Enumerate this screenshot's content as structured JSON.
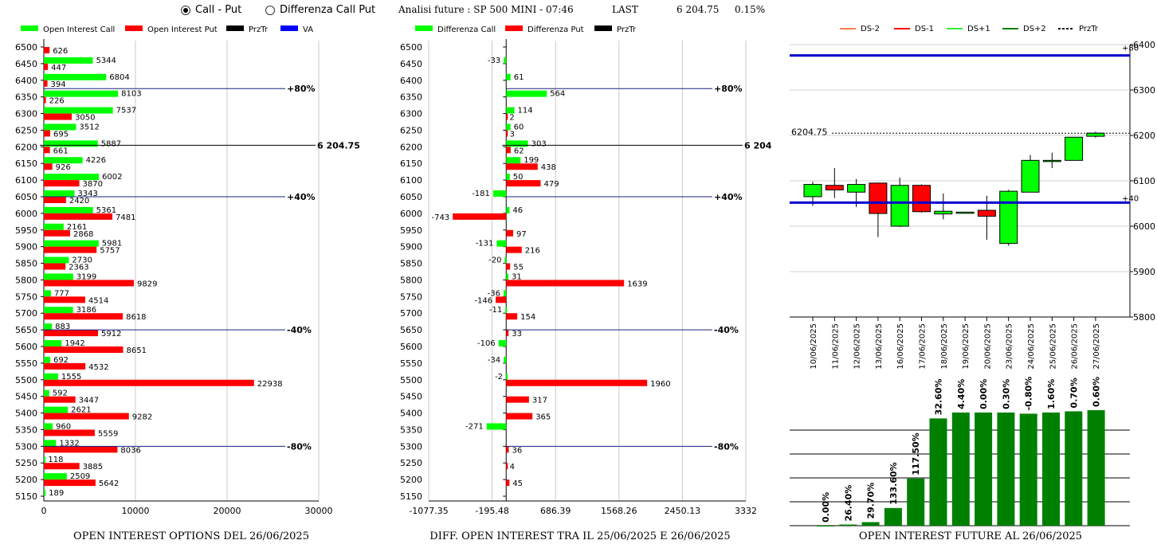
{
  "header": {
    "radio_call_put": "Call - Put",
    "radio_diff": "Differenza Call Put",
    "title": "Analisi future : SP 500 MINI - 07:46",
    "last_label": "LAST",
    "last_value": "6 204.75",
    "change": "0.15%"
  },
  "colors": {
    "call": "#00ff00",
    "put": "#ff0000",
    "va": "#0000ff",
    "bar_future": "#008000"
  },
  "chart_data": [
    {
      "type": "bar",
      "orientation": "horizontal",
      "title": "OPEN INTEREST OPTIONS DEL 26/06/2025",
      "legend": [
        "Open Interest Call",
        "Open Interest Put",
        "PrzTr",
        "VA"
      ],
      "strikes": [
        "6500",
        "6450",
        "6400",
        "6350",
        "6300",
        "6250",
        "6200",
        "6150",
        "6100",
        "6050",
        "6000",
        "5950",
        "5900",
        "5850",
        "5800",
        "5750",
        "5700",
        "5650",
        "5600",
        "5550",
        "5500",
        "5450",
        "5400",
        "5350",
        "5300",
        "5250",
        "5200",
        "5150"
      ],
      "call": [
        null,
        5344,
        6804,
        8103,
        7537,
        3512,
        5887,
        4226,
        6002,
        3343,
        5361,
        2161,
        5981,
        2730,
        3199,
        777,
        3186,
        883,
        1942,
        692,
        1555,
        592,
        2621,
        960,
        1332,
        118,
        2509,
        189
      ],
      "put": [
        626,
        447,
        394,
        226,
        3050,
        695,
        661,
        926,
        3870,
        2420,
        7481,
        2868,
        5757,
        2363,
        9829,
        4514,
        8618,
        5912,
        8651,
        4532,
        22938,
        3447,
        9282,
        5559,
        8036,
        3885,
        5642,
        null
      ],
      "xticks": [
        "0",
        "10000",
        "20000",
        "30000"
      ],
      "xlim": [
        0,
        30000
      ],
      "lines": [
        {
          "strike": 6375,
          "label": "+80%"
        },
        {
          "strike": 6204.75,
          "label": "6 204.75"
        },
        {
          "strike": 6050,
          "label": "+40%"
        },
        {
          "strike": 5650,
          "label": "-40%"
        },
        {
          "strike": 5300,
          "label": "-80%"
        }
      ]
    },
    {
      "type": "bar",
      "orientation": "horizontal",
      "title": "DIFF. OPEN INTEREST TRA IL 25/06/2025 E 26/06/2025",
      "legend": [
        "Differenza Call",
        "Differenza Put",
        "PrzTr"
      ],
      "call": [
        null,
        -33,
        61,
        564,
        114,
        60,
        303,
        199,
        50,
        -181,
        46,
        null,
        -131,
        -20,
        31,
        -36,
        -11,
        null,
        -106,
        -34,
        -2,
        null,
        null,
        -271,
        null,
        null,
        null,
        null
      ],
      "put": [
        null,
        null,
        null,
        null,
        2,
        3,
        62,
        438,
        479,
        null,
        -743,
        97,
        216,
        55,
        1639,
        -146,
        154,
        33,
        null,
        null,
        1960,
        317,
        365,
        null,
        36,
        4,
        45,
        null
      ],
      "xticks": [
        "-1077.35",
        "-195.48",
        "686.39",
        "1568.26",
        "2450.13",
        "3332"
      ],
      "xlim": [
        -1077.35,
        3332
      ]
    },
    {
      "type": "candlestick",
      "legend": [
        "DS-2",
        "DS-1",
        "DS+1",
        "DS+2",
        "PrzTr"
      ],
      "dates": [
        "10/06/2025",
        "11/06/2025",
        "12/06/2025",
        "13/06/2025",
        "16/06/2025",
        "17/06/2025",
        "18/06/2025",
        "19/06/2025",
        "20/06/2025",
        "23/06/2025",
        "24/06/2025",
        "25/06/2025",
        "26/06/2025",
        "27/06/2025"
      ],
      "ohlc": [
        [
          6065,
          6098,
          6045,
          6092
        ],
        [
          6090,
          6128,
          6062,
          6080
        ],
        [
          6075,
          6104,
          6042,
          6092
        ],
        [
          6095,
          6096,
          5976,
          6028
        ],
        [
          6000,
          6107,
          5998,
          6090
        ],
        [
          6090,
          6092,
          6030,
          6032
        ],
        [
          6027,
          6072,
          6015,
          6033
        ],
        [
          6030,
          6031,
          6030,
          6031
        ],
        [
          6035,
          6067,
          5970,
          6022
        ],
        [
          5962,
          6080,
          5957,
          6077
        ],
        [
          6075,
          6157,
          6075,
          6145
        ],
        [
          6145,
          6162,
          6128,
          6145
        ],
        [
          6145,
          6196,
          6145,
          6196
        ],
        [
          6198,
          6208,
          6195,
          6205
        ]
      ],
      "yticks": [
        "5800",
        "5900",
        "6000",
        "6100",
        "6200",
        "6300",
        "6400"
      ],
      "ylim": [
        5800,
        6400
      ],
      "lines": [
        {
          "value": 6376,
          "label": "+80"
        },
        {
          "value": 6052,
          "label": "+40"
        },
        {
          "value": 6204.75,
          "label": "6204.75"
        }
      ]
    },
    {
      "type": "bar",
      "title": "OPEN INTEREST FUTURE AL 26/06/2025",
      "values": [
        0,
        1,
        3,
        15,
        40,
        91,
        96,
        96,
        96,
        95,
        96,
        97,
        98
      ],
      "labels": [
        "0.00%",
        "26.40%",
        "29.70%",
        "133.60%",
        "117.50%",
        "32.60%",
        "4.40%",
        "0.00%",
        "0.30%",
        "-0.80%",
        "1.60%",
        "0.70%",
        "0.60%"
      ]
    }
  ]
}
